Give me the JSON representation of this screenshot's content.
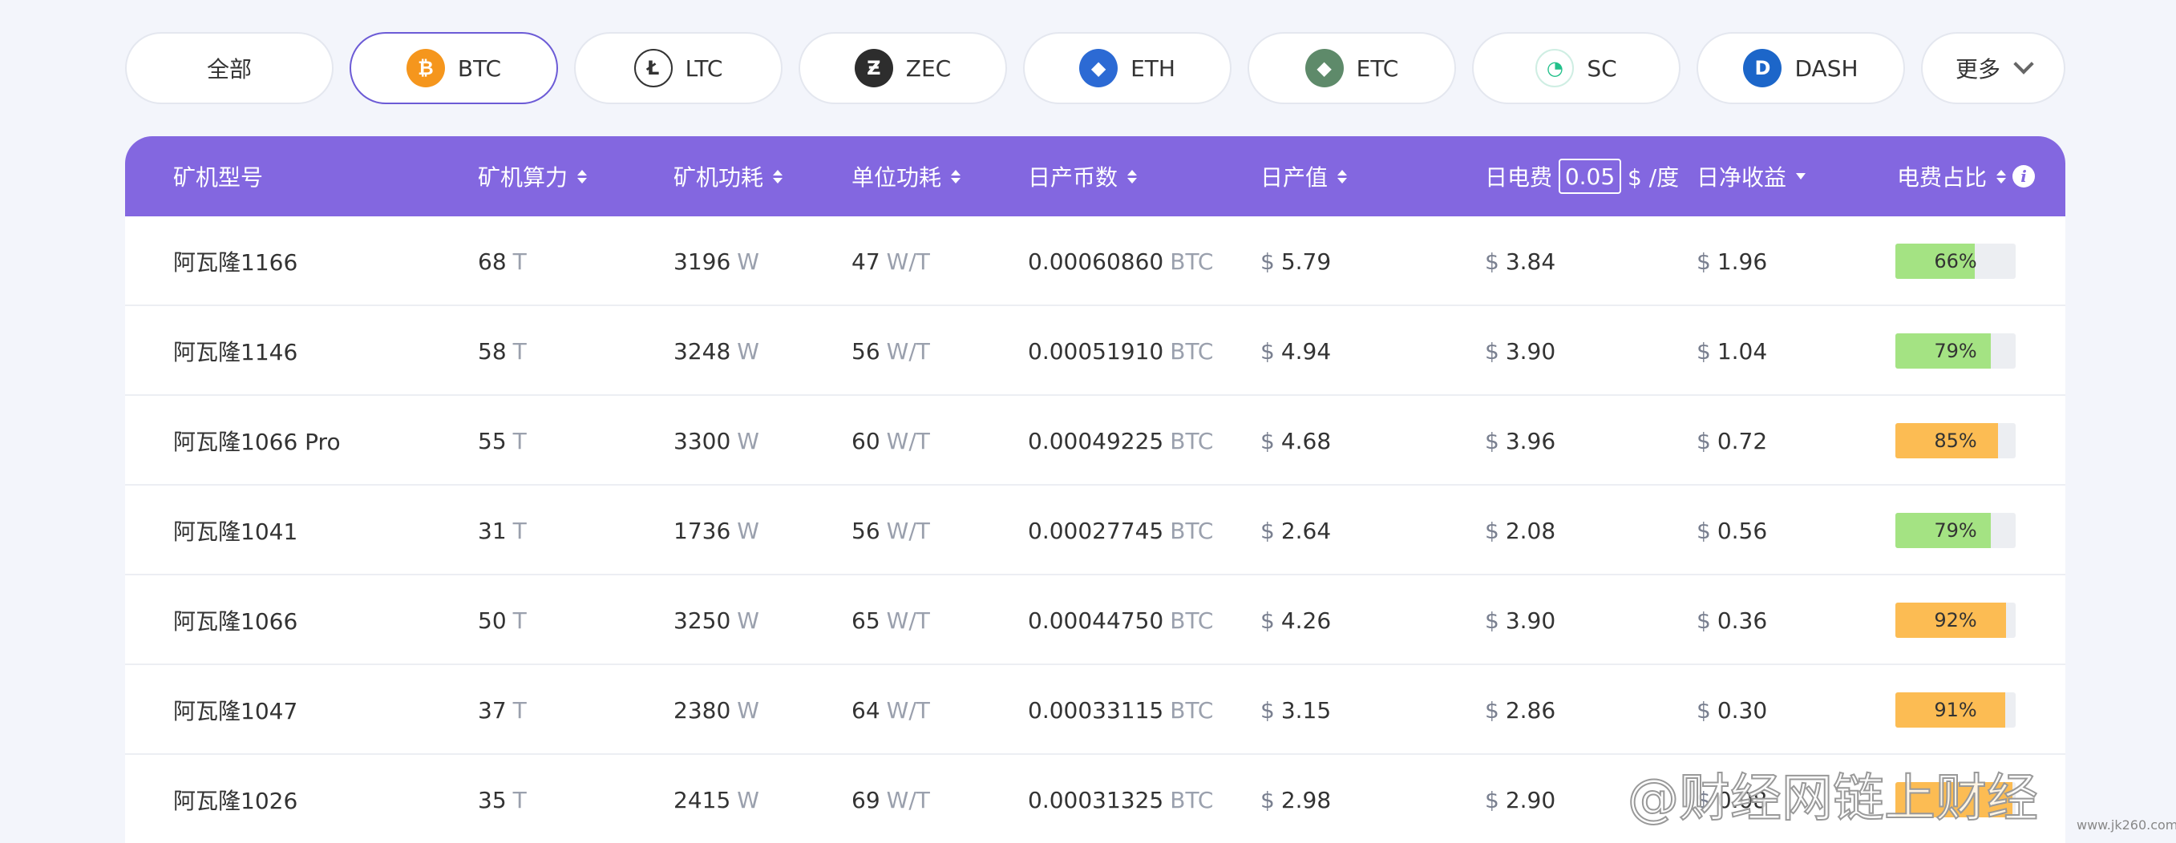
{
  "coins": [
    {
      "label": "全部",
      "icon": "",
      "icon_name": "",
      "color": "",
      "active": false
    },
    {
      "label": "BTC",
      "icon": "₿",
      "icon_name": "bitcoin-icon",
      "color": "#f5961d",
      "active": true
    },
    {
      "label": "LTC",
      "icon": "Ł",
      "icon_name": "litecoin-icon",
      "color": "#ffffff",
      "active": false
    },
    {
      "label": "ZEC",
      "icon": "Ƶ",
      "icon_name": "zcash-icon",
      "color": "#2d2d2d",
      "active": false
    },
    {
      "label": "ETH",
      "icon": "◆",
      "icon_name": "ethereum-icon",
      "color": "#2c6ad4",
      "active": false
    },
    {
      "label": "ETC",
      "icon": "◆",
      "icon_name": "ethereum-classic-icon",
      "color": "#5e8a6a",
      "active": false
    },
    {
      "label": "SC",
      "icon": "◔",
      "icon_name": "siacoin-icon",
      "color": "#ffffff",
      "active": false
    },
    {
      "label": "DASH",
      "icon": "D",
      "icon_name": "dash-icon",
      "color": "#1c66c9",
      "active": false
    }
  ],
  "more_label": "更多",
  "header": {
    "model": "矿机型号",
    "hashrate": "矿机算力",
    "power": "矿机功耗",
    "efficiency": "单位功耗",
    "daily_coins": "日产币数",
    "daily_value": "日产值",
    "elec_prefix": "日电费",
    "elec_price": "0.05",
    "elec_suffix": "$ /度",
    "net": "日净收益",
    "ratio": "电费占比"
  },
  "units": {
    "hash": "T",
    "power": "W",
    "eff": "W/T",
    "coin": "BTC",
    "currency": "$"
  },
  "rows": [
    {
      "model": "阿瓦隆1166",
      "hash": "68",
      "power": "3196",
      "eff": "47",
      "coins": "0.00060860",
      "value": "5.79",
      "elec": "3.84",
      "net": "1.96",
      "ratio": 66,
      "ratio_label": "66%",
      "bar_color": "green"
    },
    {
      "model": "阿瓦隆1146",
      "hash": "58",
      "power": "3248",
      "eff": "56",
      "coins": "0.00051910",
      "value": "4.94",
      "elec": "3.90",
      "net": "1.04",
      "ratio": 79,
      "ratio_label": "79%",
      "bar_color": "green"
    },
    {
      "model": "阿瓦隆1066 Pro",
      "hash": "55",
      "power": "3300",
      "eff": "60",
      "coins": "0.00049225",
      "value": "4.68",
      "elec": "3.96",
      "net": "0.72",
      "ratio": 85,
      "ratio_label": "85%",
      "bar_color": "orange"
    },
    {
      "model": "阿瓦隆1041",
      "hash": "31",
      "power": "1736",
      "eff": "56",
      "coins": "0.00027745",
      "value": "2.64",
      "elec": "2.08",
      "net": "0.56",
      "ratio": 79,
      "ratio_label": "79%",
      "bar_color": "green"
    },
    {
      "model": "阿瓦隆1066",
      "hash": "50",
      "power": "3250",
      "eff": "65",
      "coins": "0.00044750",
      "value": "4.26",
      "elec": "3.90",
      "net": "0.36",
      "ratio": 92,
      "ratio_label": "92%",
      "bar_color": "orange"
    },
    {
      "model": "阿瓦隆1047",
      "hash": "37",
      "power": "2380",
      "eff": "64",
      "coins": "0.00033115",
      "value": "3.15",
      "elec": "2.86",
      "net": "0.30",
      "ratio": 91,
      "ratio_label": "91%",
      "bar_color": "orange"
    },
    {
      "model": "阿瓦隆1026",
      "hash": "35",
      "power": "2415",
      "eff": "69",
      "coins": "0.00031325",
      "value": "2.98",
      "elec": "2.90",
      "net": "0.08",
      "ratio": 97,
      "ratio_label": "",
      "bar_color": "orange"
    }
  ],
  "watermark": "@财经网链上财经",
  "watermark_site": "www.jk260.com"
}
